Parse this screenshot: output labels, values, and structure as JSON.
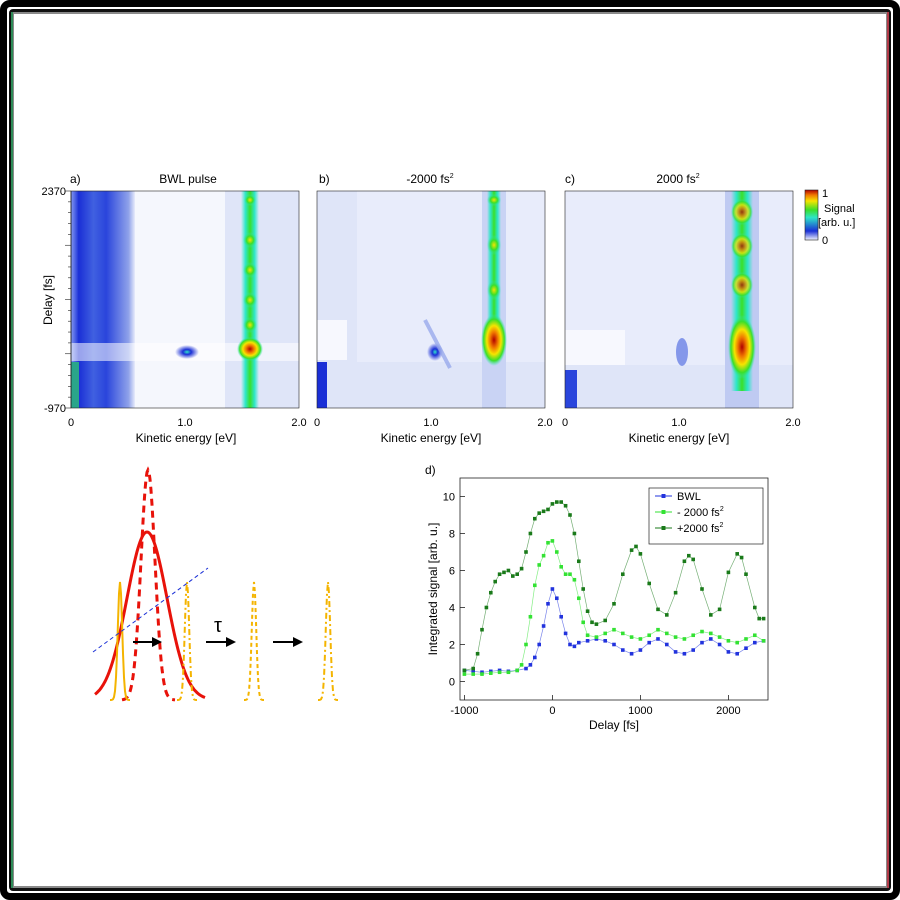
{
  "colors": {
    "bg_low": "#eef1fb",
    "blue": "#1a2fd6",
    "green_light": "#33e233",
    "green_dark": "#1a7a1a",
    "orange": "#f4b400",
    "red": "#e8120a"
  },
  "maps": [
    {
      "panel": "a)",
      "title": "BWL pulse",
      "title_sup": ""
    },
    {
      "panel": "b)",
      "title": "-2000 fs",
      "title_sup": "2"
    },
    {
      "panel": "c)",
      "title": "2000 fs",
      "title_sup": "2"
    }
  ],
  "map_axes": {
    "ylabel": "Delay [fs]",
    "xlabel": "Kinetic energy [eV]",
    "y_top": "2370",
    "y_bottom": "-970",
    "x_ticks": [
      "0",
      "1.0",
      "2.0"
    ],
    "xlim": [
      0,
      2
    ],
    "ylim": [
      -970,
      2370
    ]
  },
  "colorbar": {
    "label1": "Signal",
    "label2": "[arb. u.]",
    "max_label": "1",
    "min_label": "0"
  },
  "diagram": {
    "tau": "τ"
  },
  "chart_data": {
    "type": "scatter",
    "panel": "d)",
    "xlabel": "Delay [fs]",
    "ylabel": "Integrated signal [arb. u.]",
    "xlim": [
      -1050,
      2450
    ],
    "ylim": [
      -1,
      11
    ],
    "x_ticks": [
      -1000,
      0,
      1000,
      2000
    ],
    "y_ticks": [
      0,
      2,
      4,
      6,
      8,
      10
    ],
    "legend_position": "top-right",
    "series": [
      {
        "name": "BWL",
        "sup": "",
        "color": "#2233dd",
        "points": [
          [
            -1000,
            0.6
          ],
          [
            -900,
            0.55
          ],
          [
            -800,
            0.5
          ],
          [
            -700,
            0.55
          ],
          [
            -600,
            0.6
          ],
          [
            -500,
            0.55
          ],
          [
            -400,
            0.6
          ],
          [
            -300,
            0.7
          ],
          [
            -250,
            0.9
          ],
          [
            -200,
            1.3
          ],
          [
            -150,
            2.0
          ],
          [
            -100,
            3.0
          ],
          [
            -50,
            4.2
          ],
          [
            0,
            5.0
          ],
          [
            50,
            4.5
          ],
          [
            100,
            3.5
          ],
          [
            150,
            2.6
          ],
          [
            200,
            2.0
          ],
          [
            250,
            1.9
          ],
          [
            300,
            2.1
          ],
          [
            400,
            2.2
          ],
          [
            500,
            2.3
          ],
          [
            600,
            2.2
          ],
          [
            700,
            2.0
          ],
          [
            800,
            1.7
          ],
          [
            900,
            1.5
          ],
          [
            1000,
            1.7
          ],
          [
            1100,
            2.1
          ],
          [
            1200,
            2.3
          ],
          [
            1300,
            2.0
          ],
          [
            1400,
            1.6
          ],
          [
            1500,
            1.5
          ],
          [
            1600,
            1.7
          ],
          [
            1700,
            2.1
          ],
          [
            1800,
            2.3
          ],
          [
            1900,
            2.0
          ],
          [
            2000,
            1.6
          ],
          [
            2100,
            1.5
          ],
          [
            2200,
            1.8
          ],
          [
            2300,
            2.1
          ],
          [
            2400,
            2.2
          ]
        ]
      },
      {
        "name": "- 2000 fs",
        "sup": "2",
        "color": "#33e233",
        "points": [
          [
            -1000,
            0.4
          ],
          [
            -900,
            0.4
          ],
          [
            -800,
            0.4
          ],
          [
            -700,
            0.45
          ],
          [
            -600,
            0.5
          ],
          [
            -500,
            0.5
          ],
          [
            -400,
            0.6
          ],
          [
            -350,
            0.9
          ],
          [
            -300,
            2.0
          ],
          [
            -250,
            3.5
          ],
          [
            -200,
            5.2
          ],
          [
            -150,
            6.3
          ],
          [
            -100,
            6.8
          ],
          [
            -50,
            7.5
          ],
          [
            0,
            7.6
          ],
          [
            50,
            7.0
          ],
          [
            100,
            6.2
          ],
          [
            150,
            5.8
          ],
          [
            200,
            5.8
          ],
          [
            250,
            5.5
          ],
          [
            300,
            4.5
          ],
          [
            350,
            3.2
          ],
          [
            400,
            2.5
          ],
          [
            500,
            2.4
          ],
          [
            600,
            2.6
          ],
          [
            700,
            2.8
          ],
          [
            800,
            2.6
          ],
          [
            900,
            2.4
          ],
          [
            1000,
            2.3
          ],
          [
            1100,
            2.5
          ],
          [
            1200,
            2.8
          ],
          [
            1300,
            2.6
          ],
          [
            1400,
            2.4
          ],
          [
            1500,
            2.3
          ],
          [
            1600,
            2.5
          ],
          [
            1700,
            2.7
          ],
          [
            1800,
            2.6
          ],
          [
            1900,
            2.4
          ],
          [
            2000,
            2.2
          ],
          [
            2100,
            2.1
          ],
          [
            2200,
            2.3
          ],
          [
            2300,
            2.5
          ],
          [
            2400,
            2.2
          ]
        ]
      },
      {
        "name": "+2000 fs",
        "sup": "2",
        "color": "#1a7a1a",
        "points": [
          [
            -1000,
            0.6
          ],
          [
            -900,
            0.7
          ],
          [
            -850,
            1.5
          ],
          [
            -800,
            2.8
          ],
          [
            -750,
            4.0
          ],
          [
            -700,
            4.8
          ],
          [
            -650,
            5.4
          ],
          [
            -600,
            5.8
          ],
          [
            -550,
            5.9
          ],
          [
            -500,
            6.0
          ],
          [
            -450,
            5.7
          ],
          [
            -400,
            5.8
          ],
          [
            -350,
            6.1
          ],
          [
            -300,
            7.0
          ],
          [
            -250,
            8.0
          ],
          [
            -200,
            8.8
          ],
          [
            -150,
            9.1
          ],
          [
            -100,
            9.2
          ],
          [
            -50,
            9.3
          ],
          [
            0,
            9.6
          ],
          [
            50,
            9.7
          ],
          [
            100,
            9.7
          ],
          [
            150,
            9.5
          ],
          [
            200,
            9.0
          ],
          [
            250,
            8.0
          ],
          [
            300,
            6.5
          ],
          [
            350,
            5.0
          ],
          [
            400,
            3.8
          ],
          [
            450,
            3.2
          ],
          [
            500,
            3.1
          ],
          [
            600,
            3.3
          ],
          [
            700,
            4.2
          ],
          [
            800,
            5.8
          ],
          [
            900,
            7.1
          ],
          [
            950,
            7.3
          ],
          [
            1000,
            6.9
          ],
          [
            1100,
            5.3
          ],
          [
            1200,
            3.9
          ],
          [
            1300,
            3.6
          ],
          [
            1400,
            4.8
          ],
          [
            1500,
            6.5
          ],
          [
            1550,
            6.8
          ],
          [
            1600,
            6.6
          ],
          [
            1700,
            5.0
          ],
          [
            1800,
            3.6
          ],
          [
            1900,
            3.9
          ],
          [
            2000,
            5.9
          ],
          [
            2100,
            6.9
          ],
          [
            2150,
            6.7
          ],
          [
            2200,
            5.8
          ],
          [
            2300,
            4.0
          ],
          [
            2350,
            3.4
          ],
          [
            2400,
            3.4
          ]
        ]
      }
    ]
  }
}
